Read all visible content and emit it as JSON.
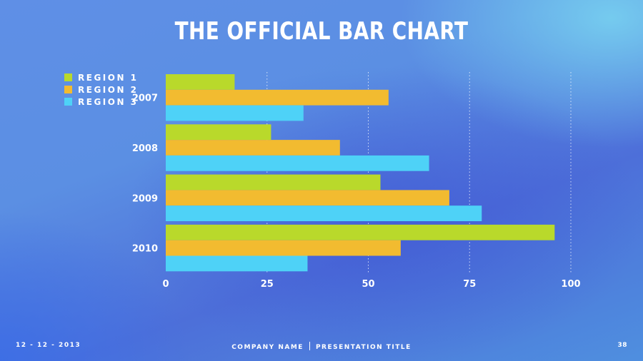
{
  "title": "THE OFFICIAL BAR CHART",
  "footer": {
    "date": "12 - 12 - 2013",
    "company": "COMPANY NAME",
    "presentation": "PRESENTATION TITLE",
    "page": "38"
  },
  "colors": {
    "region1": "#b9d92b",
    "region2": "#f2bb30",
    "region3": "#4ed2f7"
  },
  "chart_data": {
    "type": "bar",
    "orientation": "horizontal",
    "title": "THE OFFICIAL BAR CHART",
    "categories": [
      "2007",
      "2008",
      "2009",
      "2010"
    ],
    "series": [
      {
        "name": "REGION 1",
        "values": [
          17,
          26,
          53,
          96
        ]
      },
      {
        "name": "REGION 2",
        "values": [
          55,
          43,
          70,
          58
        ]
      },
      {
        "name": "REGION 3",
        "values": [
          34,
          65,
          78,
          35
        ]
      }
    ],
    "xlim": [
      0,
      100
    ],
    "xticks": [
      "0",
      "25",
      "50",
      "75",
      "100"
    ],
    "xlabel": "",
    "ylabel": "",
    "grid": "vertical dotted",
    "legend": "top-left"
  }
}
